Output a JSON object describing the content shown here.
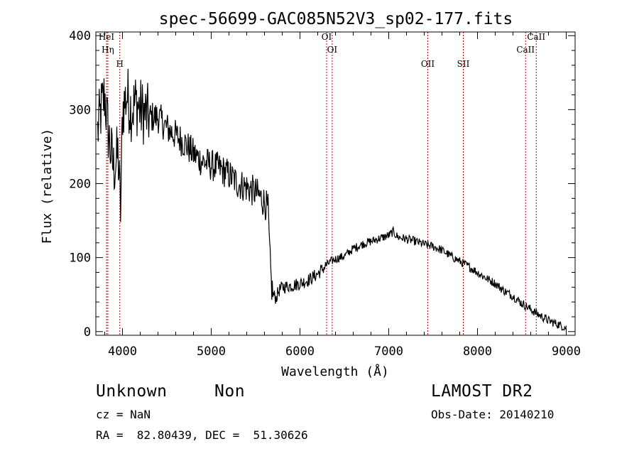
{
  "chart_data": {
    "type": "line",
    "title": "spec-56699-GAC085N52V3_sp02-177.fits",
    "xlabel": "Wavelength (Å)",
    "ylabel": "Flux (relative)",
    "xlim": [
      3700,
      9100
    ],
    "ylim": [
      -5,
      405
    ],
    "xticks": [
      4000,
      5000,
      6000,
      7000,
      8000,
      9000
    ],
    "xtick_labels": [
      "4000",
      "5000",
      "6000",
      "7000",
      "8000",
      "9000"
    ],
    "yticks": [
      0,
      100,
      200,
      300,
      400
    ],
    "ytick_labels": [
      "0",
      "100",
      "200",
      "300",
      "400"
    ],
    "grid": false,
    "series": [
      {
        "x": [
          3720,
          3760,
          3800,
          3830,
          3860,
          3900,
          3950,
          3980,
          4000,
          4050,
          4100,
          4150,
          4200,
          4300,
          4400,
          4500,
          4600,
          4700,
          4800,
          4900,
          5000,
          5100,
          5200,
          5300,
          5400,
          5500,
          5550,
          5600,
          5640,
          5660,
          5680,
          5700,
          5730,
          5760,
          5800,
          5900,
          6000,
          6100,
          6200,
          6300,
          6350,
          6400,
          6500,
          6600,
          6700,
          6800,
          6900,
          7000,
          7050,
          7100,
          7200,
          7300,
          7400,
          7500,
          7600,
          7700,
          7800,
          7900,
          8000,
          8100,
          8200,
          8300,
          8400,
          8500,
          8600,
          8700,
          8800,
          8900,
          9000
        ],
        "y": [
          270,
          300,
          320,
          280,
          250,
          220,
          240,
          160,
          300,
          320,
          300,
          310,
          300,
          290,
          290,
          275,
          265,
          255,
          240,
          230,
          225,
          220,
          212,
          200,
          195,
          188,
          182,
          175,
          165,
          100,
          60,
          50,
          45,
          55,
          60,
          62,
          65,
          70,
          78,
          90,
          95,
          98,
          102,
          112,
          118,
          122,
          126,
          130,
          135,
          128,
          125,
          122,
          118,
          115,
          110,
          102,
          95,
          88,
          80,
          72,
          65,
          55,
          48,
          38,
          30,
          22,
          15,
          10,
          5
        ]
      }
    ],
    "line_markers": [
      {
        "label": "HeI",
        "x": 3820
      },
      {
        "label": "Hη",
        "x": 3835
      },
      {
        "label": "H",
        "x": 3970
      },
      {
        "label": "OI",
        "x": 6300
      },
      {
        "label": "OI",
        "x": 6363
      },
      {
        "label": "OII",
        "x": 7440
      },
      {
        "label": "SII",
        "x": 7840
      },
      {
        "label": "CaII",
        "x": 8542
      },
      {
        "label": "CaII",
        "x": 8662
      }
    ],
    "marker_color": "#c00000"
  },
  "info": {
    "class_label": "Unknown",
    "subclass_label": "Non",
    "survey": "LAMOST DR2",
    "cz": "cz = NaN",
    "obs_date": "Obs-Date: 20140210",
    "coords": "RA =  82.80439, DEC =  51.30626"
  }
}
